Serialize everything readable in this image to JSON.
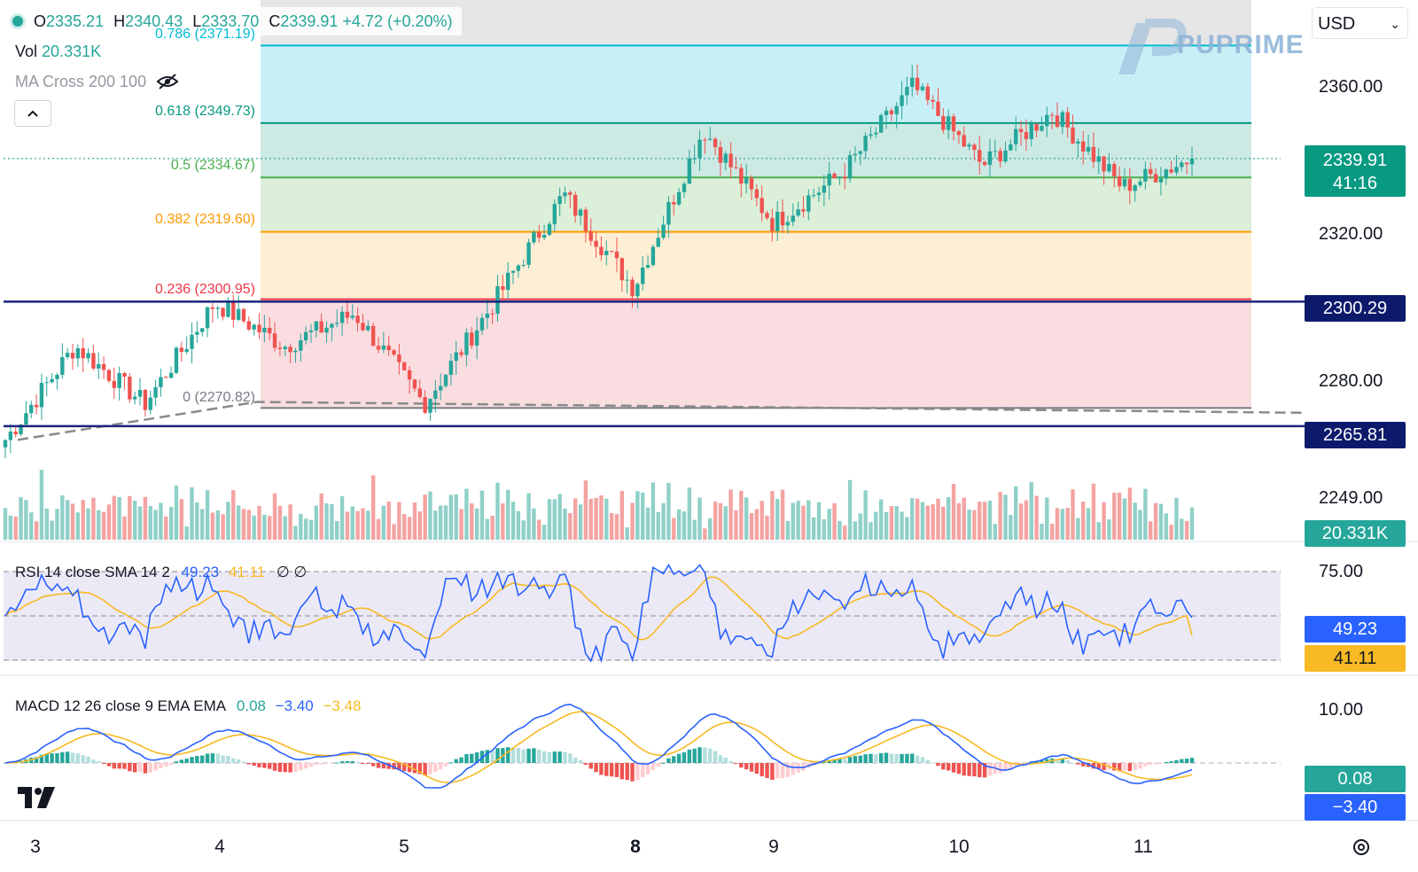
{
  "header": {
    "ohlc": {
      "o_label": "O",
      "o": "2335.21",
      "h_label": "H",
      "h": "2340.43",
      "l_label": "L",
      "l": "2333.70",
      "c_label": "C",
      "c": "2339.91",
      "change": "+4.72 (+0.20%)"
    },
    "vol_label": "Vol",
    "vol_value": "20.331K",
    "ma_cross_label": "MA Cross 200 100",
    "currency": "USD",
    "watermark": "PUPRIME"
  },
  "fib_levels": [
    {
      "ratio": "0.786",
      "label": "0.786 (2371.19)",
      "price": 2371.19,
      "color": "#00bcd4"
    },
    {
      "ratio": "0.618",
      "label": "0.618 (2349.73)",
      "price": 2349.73,
      "color": "#089981"
    },
    {
      "ratio": "0.5",
      "label": "0.5 (2334.67)",
      "price": 2334.67,
      "color": "#4caf50"
    },
    {
      "ratio": "0.382",
      "label": "0.382 (2319.60)",
      "price": 2319.6,
      "color": "#ff9800"
    },
    {
      "ratio": "0.236",
      "label": "0.236 (2300.95)",
      "price": 2300.95,
      "color": "#f23645"
    },
    {
      "ratio": "0",
      "label": "0 (2270.82)",
      "price": 2270.82,
      "color": "#787b86"
    }
  ],
  "price_axis": {
    "ticks": [
      "2360.00",
      "2320.00",
      "2280.00",
      "2249.00"
    ],
    "last_price": "2339.91",
    "countdown": "41:16",
    "support_1": "2300.29",
    "support_2": "2265.81",
    "volume_tag": "20.331K"
  },
  "rsi": {
    "label": "RSI 14 close SMA 14 2",
    "rsi_value": "49.23",
    "sma_value": "41.11",
    "extra": "∅ ∅",
    "axis_top": "75.00",
    "tag_rsi": "49.23",
    "tag_sma": "41.11"
  },
  "macd": {
    "label": "MACD 12 26 close 9 EMA EMA",
    "hist": "0.08",
    "macd": "−3.40",
    "signal": "−3.48",
    "axis_top": "10.00",
    "tag_hist": "0.08",
    "tag_macd": "−3.40"
  },
  "x_axis": [
    "3",
    "4",
    "5",
    "8",
    "9",
    "10",
    "11"
  ],
  "colors": {
    "up": "#26a69a",
    "down": "#ef5350",
    "support_line": "#1a237e",
    "rsi_line": "#2962ff",
    "sma_line": "#f7b924"
  },
  "chart_data": {
    "type": "candlestick",
    "title": "",
    "x_ticks": [
      "3",
      "4",
      "5",
      "8",
      "9",
      "10",
      "11"
    ],
    "y_ticks": [
      2360,
      2320,
      2280,
      2249
    ],
    "close_path": [
      {
        "day": "3",
        "close": 2262
      },
      {
        "day": "3",
        "close": 2288
      },
      {
        "day": "4",
        "close": 2272
      },
      {
        "day": "4",
        "close": 2300
      },
      {
        "day": "5",
        "close": 2288
      },
      {
        "day": "5",
        "close": 2297
      },
      {
        "day": "5",
        "close": 2272
      },
      {
        "day": "5",
        "close": 2300
      },
      {
        "day": "8",
        "close": 2330
      },
      {
        "day": "8",
        "close": 2304
      },
      {
        "day": "8",
        "close": 2348
      },
      {
        "day": "9",
        "close": 2322
      },
      {
        "day": "9",
        "close": 2336
      },
      {
        "day": "10",
        "close": 2360
      },
      {
        "day": "10",
        "close": 2338
      },
      {
        "day": "10",
        "close": 2353
      },
      {
        "day": "11",
        "close": 2332
      },
      {
        "day": "11",
        "close": 2339.91
      }
    ],
    "last": {
      "open": 2335.21,
      "high": 2340.43,
      "low": 2333.7,
      "close": 2339.91
    },
    "horizontal_lines": [
      2300.29,
      2265.81
    ],
    "rsi": {
      "value": 49.23,
      "sma": 41.11,
      "upper": 70,
      "lower": 30
    },
    "macd": {
      "hist": 0.08,
      "macd": -3.4,
      "signal": -3.48
    }
  }
}
